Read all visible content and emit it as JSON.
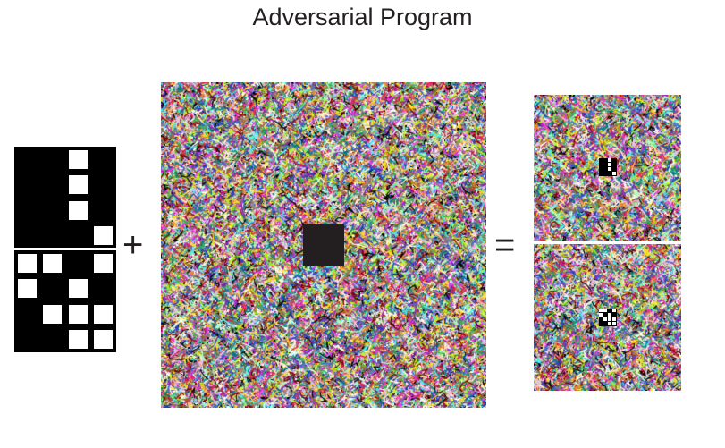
{
  "title": "Adversarial Program",
  "operators": {
    "plus": "+",
    "equals": "="
  },
  "task_images": [
    {
      "cells": [
        [
          0,
          0,
          1,
          0
        ],
        [
          0,
          0,
          1,
          0
        ],
        [
          0,
          0,
          1,
          0
        ],
        [
          0,
          0,
          0,
          1
        ]
      ]
    },
    {
      "cells": [
        [
          1,
          1,
          0,
          1
        ],
        [
          1,
          0,
          1,
          0
        ],
        [
          0,
          1,
          1,
          1
        ],
        [
          0,
          0,
          1,
          1
        ]
      ]
    }
  ],
  "colors": {
    "text": "#231f20",
    "hole": "#231f20",
    "panel": "#000000",
    "cell": "#ffffff",
    "noise_palette": [
      "#e6194b",
      "#3cb44b",
      "#ffe119",
      "#4363d8",
      "#f58231",
      "#911eb4",
      "#46f0f0",
      "#f032e6",
      "#bcf60c",
      "#fabebe",
      "#008080",
      "#e6beff",
      "#9a6324",
      "#fffac8",
      "#800000",
      "#aaffc3",
      "#ffffff",
      "#000000",
      "#808080",
      "#1f3fbf"
    ]
  }
}
